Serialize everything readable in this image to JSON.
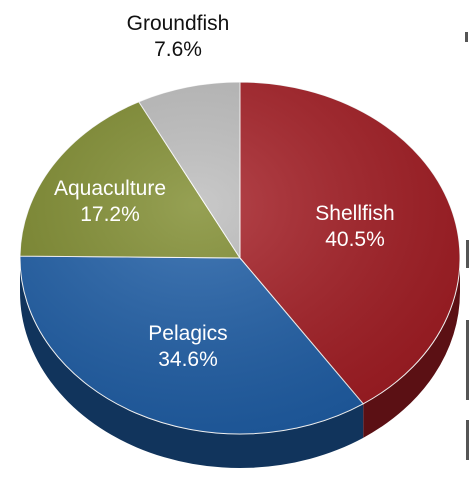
{
  "chart_data": {
    "type": "pie",
    "title": "",
    "slices": [
      {
        "label": "Shellfish",
        "pct_label": "40.5%",
        "value": 40.5,
        "color": "#a51d24",
        "text_color": "#ffffff"
      },
      {
        "label": "Pelagics",
        "pct_label": "34.6%",
        "value": 34.6,
        "color": "#1f5fa8",
        "text_color": "#ffffff"
      },
      {
        "label": "Aquaculture",
        "pct_label": "17.2%",
        "value": 17.2,
        "color": "#7f8c2e",
        "text_color": "#ffffff"
      },
      {
        "label": "Groundfish",
        "pct_label": "7.6%",
        "value": 7.6,
        "color": "#bdbdbd",
        "text_color": "#111111"
      }
    ],
    "legend": "none",
    "style": "3d-pie"
  }
}
